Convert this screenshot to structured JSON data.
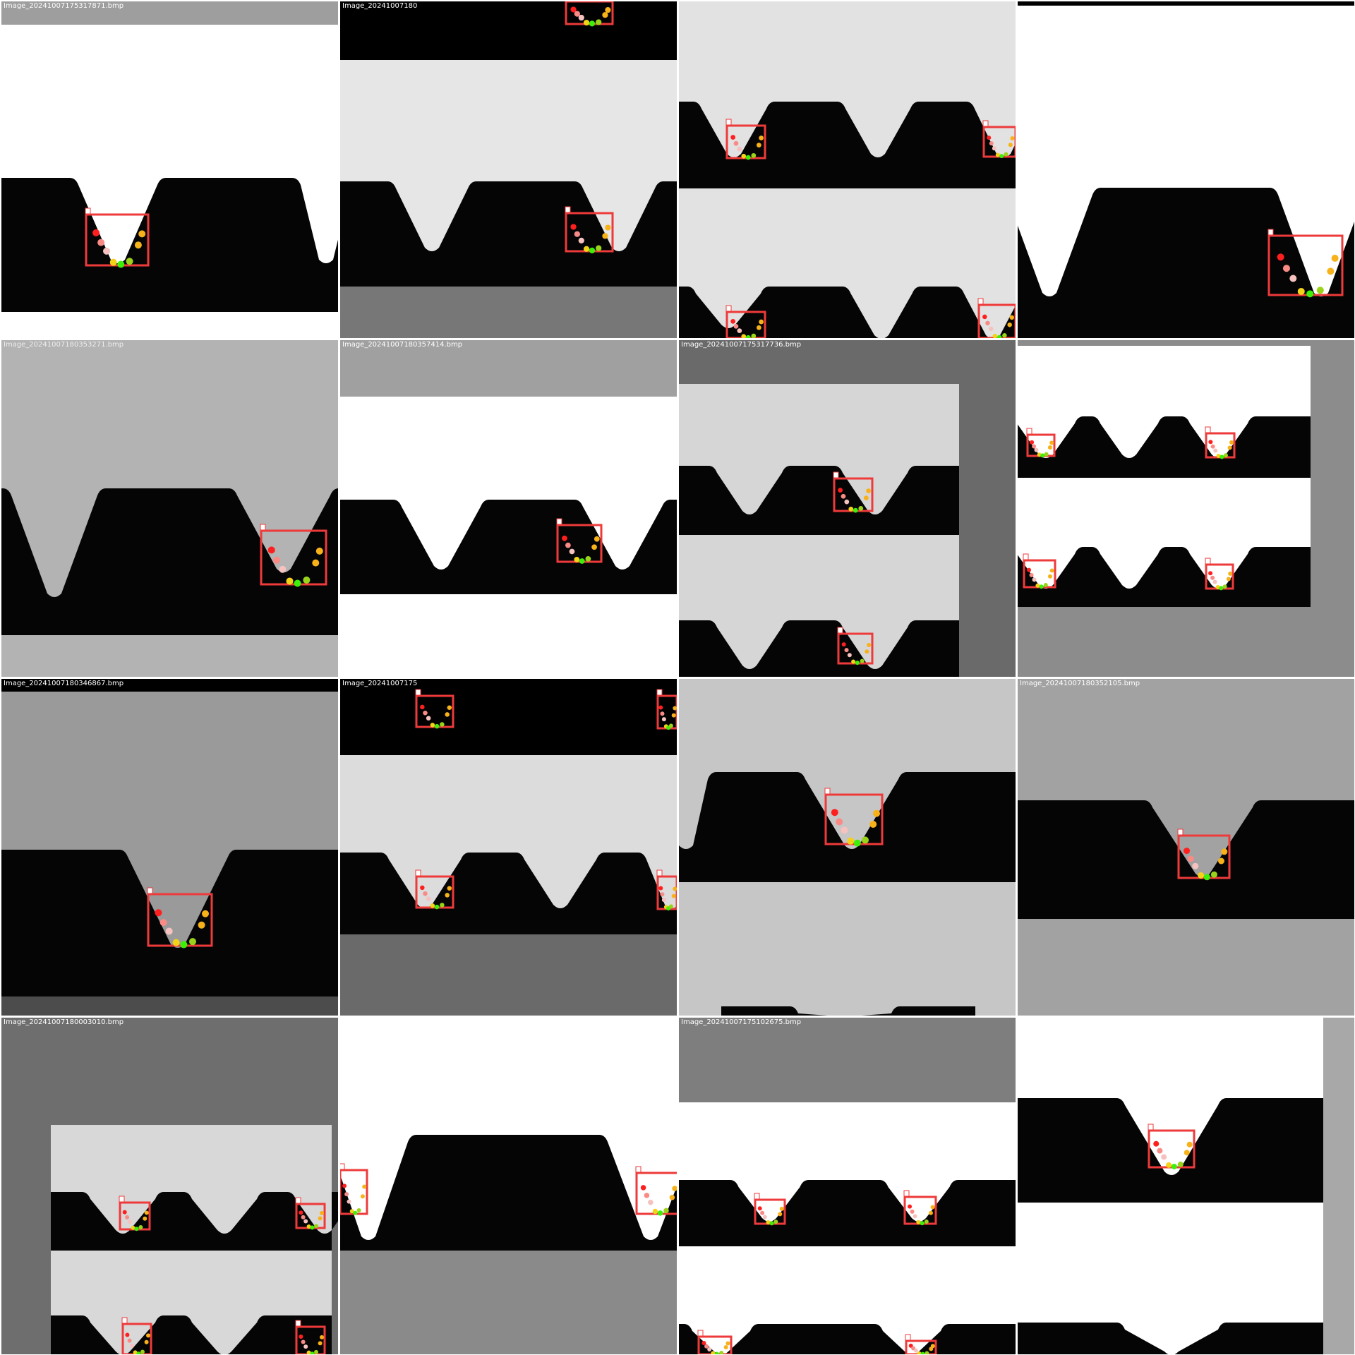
{
  "colors": {
    "box": "#ee3a3a",
    "tooth": "#050505",
    "points": [
      "#ff1f1f",
      "#f98b86",
      "#f6c2bf",
      "#f7b21a",
      "#f3d21a",
      "#9ad41a",
      "#3df00a"
    ]
  },
  "icons": {
    "tile": "gear-tooth-detection-image"
  },
  "tiles": [
    {
      "label": "Image_20241007175317871.bmp",
      "label_color": "#ffffff"
    },
    {
      "label": "Image_20241007180",
      "label_color": "#ffffff"
    },
    {
      "label": "",
      "label_color": "#ffffff"
    },
    {
      "label": "",
      "label_color": "#ffffff"
    },
    {
      "label": "Image_20241007180353271.bmp",
      "label_color": "#eeeeee"
    },
    {
      "label": "Image_20241007180357414.bmp",
      "label_color": "#ffffff"
    },
    {
      "label": "Image_20241007175317736.bmp",
      "label_color": "#ffffff"
    },
    {
      "label": "",
      "label_color": "#ffffff"
    },
    {
      "label": "Image_20241007180346867.bmp",
      "label_color": "#ffffff"
    },
    {
      "label": "Image_20241007175",
      "label_color": "#ffffff"
    },
    {
      "label": "",
      "label_color": "#ffffff"
    },
    {
      "label": "Image_20241007180352105.bmp",
      "label_color": "#ffffff"
    },
    {
      "label": "Image_20241007180003010.bmp",
      "label_color": "#ffffff"
    },
    {
      "label": "",
      "label_color": "#ffffff"
    },
    {
      "label": "Image_20241007175102675.bmp",
      "label_color": "#ffffff"
    },
    {
      "label": "",
      "label_color": "#ffffff"
    }
  ]
}
